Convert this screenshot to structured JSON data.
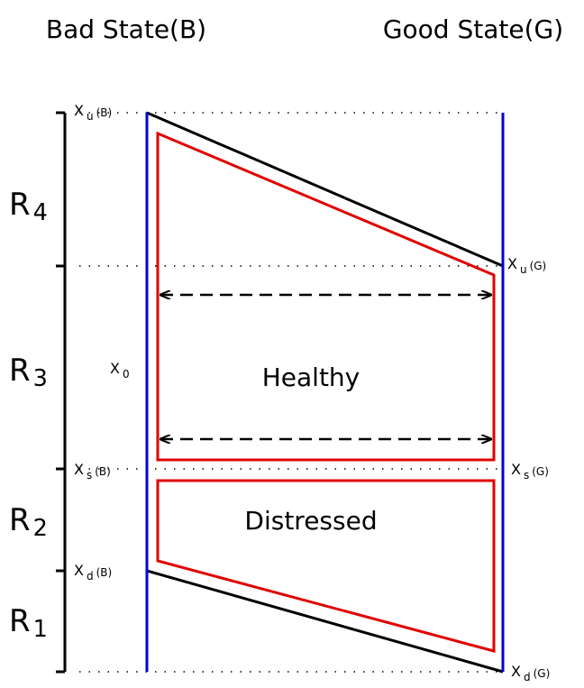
{
  "header": {
    "left_title": "Bad State(B)",
    "right_title": "Good State(G)"
  },
  "regions": [
    {
      "main": "R",
      "sub": "4"
    },
    {
      "main": "R",
      "sub": "3"
    },
    {
      "main": "R",
      "sub": "2"
    },
    {
      "main": "R",
      "sub": "1"
    }
  ],
  "thresholds": [
    {
      "main": "X",
      "sub": "u",
      "suffix": "(B)"
    },
    {
      "main": "X",
      "sub": "u",
      "suffix": "(G)"
    },
    {
      "main": "X",
      "sub": "0"
    },
    {
      "main": "X",
      "sub": "s",
      "suffix": "(B)"
    },
    {
      "main": "X",
      "sub": "s",
      "suffix": "(G)"
    },
    {
      "main": "X",
      "sub": "d",
      "suffix": "(B)"
    },
    {
      "main": "X",
      "sub": "d",
      "suffix": "(G)"
    }
  ],
  "zones": {
    "healthy": "Healthy",
    "distressed": "Distressed"
  }
}
